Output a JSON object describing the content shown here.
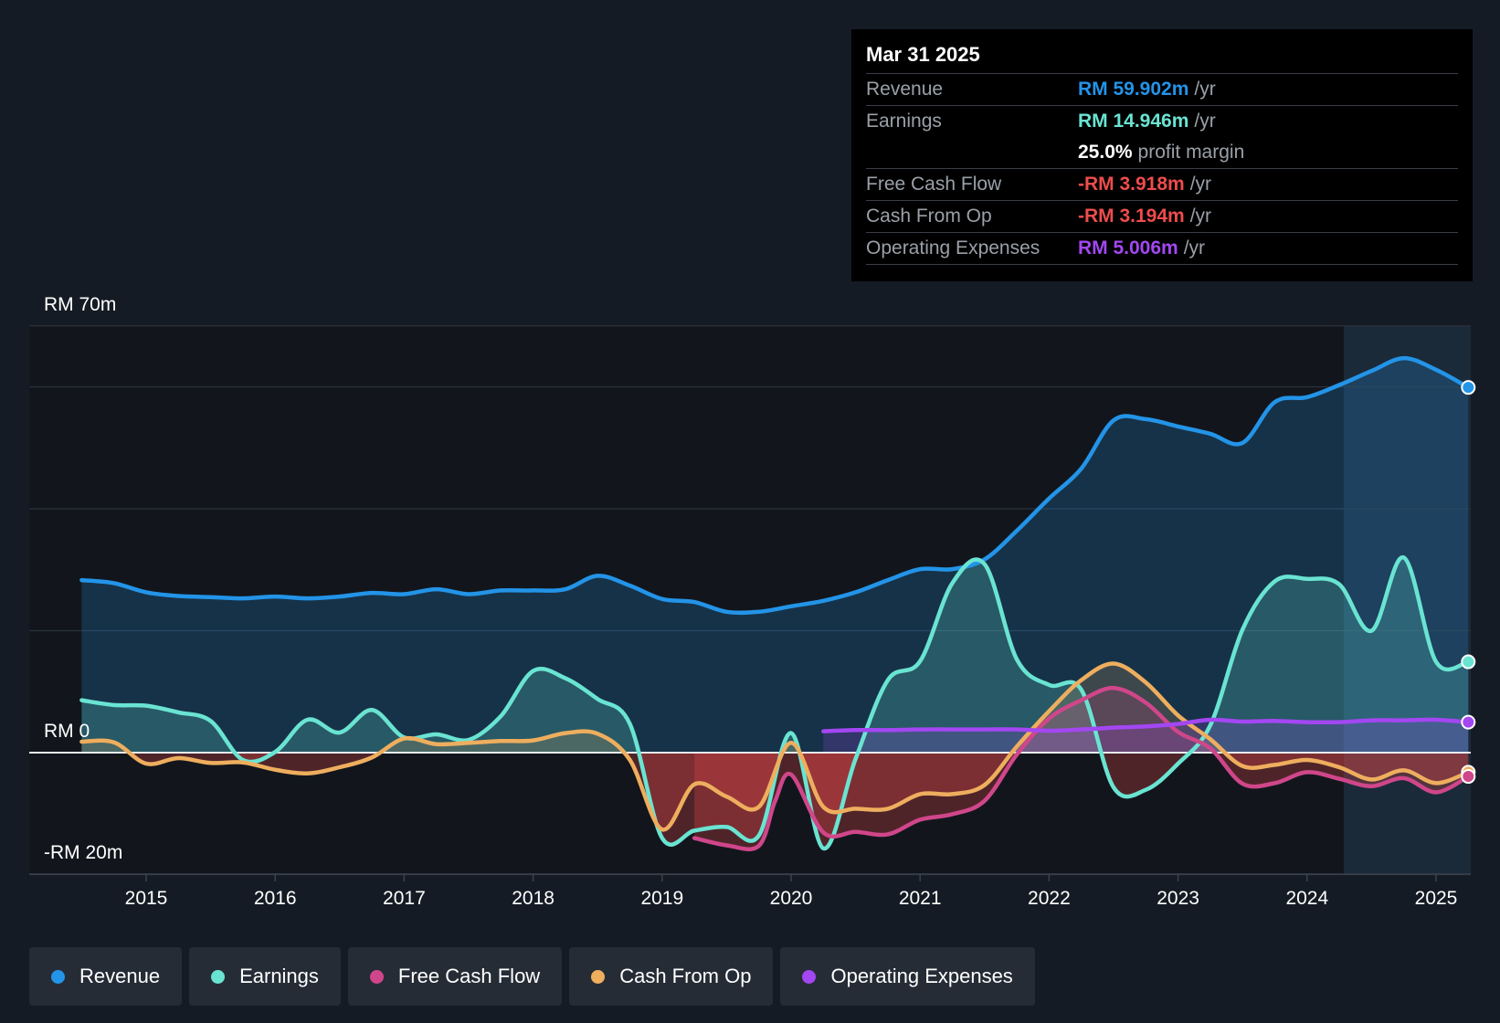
{
  "colors": {
    "background": "#151b24",
    "revenue": "#2394e8",
    "earnings": "#6ae4d2",
    "free_cash_flow": "#d0468a",
    "cash_from_op": "#eeae5e",
    "operating_expenses": "#a347f2",
    "negative": "#ee4c4c"
  },
  "tooltip": {
    "date": "Mar 31 2025",
    "rows": [
      {
        "label": "Revenue",
        "value": "RM 59.902m",
        "unit": "/yr"
      },
      {
        "label": "Earnings",
        "value": "RM 14.946m",
        "unit": "/yr"
      },
      {
        "label": "",
        "value": "25.0%",
        "unit": "profit margin"
      },
      {
        "label": "Free Cash Flow",
        "value": "-RM 3.918m",
        "unit": "/yr"
      },
      {
        "label": "Cash From Op",
        "value": "-RM 3.194m",
        "unit": "/yr"
      },
      {
        "label": "Operating Expenses",
        "value": "RM 5.006m",
        "unit": "/yr"
      }
    ]
  },
  "legend": [
    {
      "label": "Revenue",
      "color": "#2394e8"
    },
    {
      "label": "Earnings",
      "color": "#6ae4d2"
    },
    {
      "label": "Free Cash Flow",
      "color": "#d0468a"
    },
    {
      "label": "Cash From Op",
      "color": "#eeae5e"
    },
    {
      "label": "Operating Expenses",
      "color": "#a347f2"
    }
  ],
  "chart_data": {
    "type": "area",
    "title": "",
    "xlabel": "",
    "ylabel": "",
    "unit": "RM m",
    "y_tick_labels": [
      "RM 70m",
      "RM 0",
      "-RM 20m"
    ],
    "ylim": [
      -20,
      70
    ],
    "xlim": [
      2014.5,
      2025.25
    ],
    "x_ticks": [
      2015,
      2016,
      2017,
      2018,
      2019,
      2020,
      2021,
      2022,
      2023,
      2024,
      2025
    ],
    "x_tick_labels": [
      "2015",
      "2016",
      "2017",
      "2018",
      "2019",
      "2020",
      "2021",
      "2022",
      "2023",
      "2024",
      "2025"
    ],
    "forecast_start": 2024.25,
    "series": [
      {
        "name": "Revenue",
        "key": "revenue",
        "x": [
          2014.5,
          2014.75,
          2015.0,
          2015.25,
          2015.5,
          2015.75,
          2016.0,
          2016.25,
          2016.5,
          2016.75,
          2017.0,
          2017.25,
          2017.5,
          2017.75,
          2018.0,
          2018.25,
          2018.5,
          2018.75,
          2019.0,
          2019.25,
          2019.5,
          2019.75,
          2020.0,
          2020.25,
          2020.5,
          2020.75,
          2021.0,
          2021.25,
          2021.5,
          2021.75,
          2022.0,
          2022.25,
          2022.5,
          2022.75,
          2023.0,
          2023.25,
          2023.5,
          2023.75,
          2024.0,
          2024.25,
          2024.5,
          2024.75,
          2025.0,
          2025.25
        ],
        "values": [
          28.3,
          27.8,
          26.3,
          25.7,
          25.5,
          25.3,
          25.6,
          25.3,
          25.6,
          26.2,
          26.0,
          26.8,
          26.0,
          26.6,
          26.6,
          26.8,
          29.0,
          27.4,
          25.2,
          24.7,
          23.1,
          23.1,
          24.0,
          24.9,
          26.3,
          28.3,
          30.1,
          30.1,
          31.7,
          36.4,
          41.7,
          46.6,
          54.5,
          54.7,
          53.5,
          52.3,
          50.8,
          57.5,
          58.3,
          60.3,
          62.6,
          64.7,
          62.8,
          59.9
        ]
      },
      {
        "name": "Earnings",
        "key": "earnings",
        "x": [
          2014.5,
          2014.75,
          2015.0,
          2015.25,
          2015.5,
          2015.75,
          2016.0,
          2016.25,
          2016.5,
          2016.75,
          2017.0,
          2017.25,
          2017.5,
          2017.75,
          2018.0,
          2018.25,
          2018.5,
          2018.75,
          2019.0,
          2019.25,
          2019.5,
          2019.75,
          2020.0,
          2020.25,
          2020.5,
          2020.75,
          2021.0,
          2021.25,
          2021.5,
          2021.75,
          2022.0,
          2022.25,
          2022.5,
          2022.75,
          2023.0,
          2023.25,
          2023.5,
          2023.75,
          2024.0,
          2024.25,
          2024.5,
          2024.75,
          2025.0,
          2025.25
        ],
        "values": [
          8.6,
          7.8,
          7.7,
          6.6,
          5.2,
          -1.2,
          0.1,
          5.4,
          3.3,
          7.0,
          2.5,
          3.0,
          2.1,
          6.0,
          13.4,
          12.2,
          8.8,
          4.7,
          -14.0,
          -12.8,
          -12.2,
          -13.6,
          3.2,
          -15.7,
          -1.0,
          11.9,
          15.0,
          27.8,
          30.9,
          15.3,
          11.1,
          10.3,
          -5.7,
          -6.1,
          -1.8,
          4.5,
          20.2,
          28.1,
          28.5,
          27.6,
          20.0,
          32.0,
          14.9,
          14.9
        ]
      },
      {
        "name": "Free Cash Flow",
        "key": "free_cash_flow",
        "x": [
          2019.25,
          2019.5,
          2019.75,
          2019.875,
          2020.0,
          2020.25,
          2020.5,
          2020.75,
          2021.0,
          2021.25,
          2021.5,
          2021.75,
          2022.0,
          2022.25,
          2022.5,
          2022.75,
          2023.0,
          2023.25,
          2023.5,
          2023.75,
          2024.0,
          2024.25,
          2024.5,
          2024.75,
          2025.0,
          2025.25
        ],
        "values": [
          -14.0,
          -15.2,
          -15.3,
          -8.0,
          -3.6,
          -13.1,
          -13.0,
          -13.4,
          -11.0,
          -10.1,
          -7.9,
          -0.3,
          5.6,
          8.6,
          10.6,
          8.2,
          3.4,
          0.7,
          -5.1,
          -5.0,
          -3.2,
          -4.3,
          -5.5,
          -4.2,
          -6.5,
          -3.9
        ]
      },
      {
        "name": "Cash From Op",
        "key": "cash_from_op",
        "x": [
          2014.5,
          2014.75,
          2015.0,
          2015.25,
          2015.5,
          2015.75,
          2016.0,
          2016.25,
          2016.5,
          2016.75,
          2017.0,
          2017.25,
          2017.5,
          2017.75,
          2018.0,
          2018.25,
          2018.5,
          2018.75,
          2019.0,
          2019.25,
          2019.5,
          2019.75,
          2020.0,
          2020.25,
          2020.5,
          2020.75,
          2021.0,
          2021.25,
          2021.5,
          2021.75,
          2022.0,
          2022.25,
          2022.5,
          2022.75,
          2023.0,
          2023.25,
          2023.5,
          2023.75,
          2024.0,
          2024.25,
          2024.5,
          2024.75,
          2025.0,
          2025.25
        ],
        "values": [
          1.8,
          1.7,
          -1.8,
          -0.9,
          -1.7,
          -1.6,
          -2.8,
          -3.4,
          -2.4,
          -0.8,
          2.3,
          1.4,
          1.6,
          1.9,
          2.0,
          3.2,
          3.1,
          -1.2,
          -12.6,
          -5.2,
          -7.2,
          -8.9,
          1.6,
          -8.9,
          -9.2,
          -9.2,
          -6.8,
          -6.8,
          -5.3,
          1.0,
          6.8,
          11.9,
          14.6,
          11.5,
          6.1,
          2.2,
          -2.2,
          -2.0,
          -1.2,
          -2.4,
          -4.4,
          -2.9,
          -5.0,
          -3.2
        ]
      },
      {
        "name": "Operating Expenses",
        "key": "operating_expenses",
        "x": [
          2020.25,
          2020.5,
          2020.75,
          2021.0,
          2021.25,
          2021.5,
          2021.75,
          2022.0,
          2022.25,
          2022.5,
          2022.75,
          2023.0,
          2023.25,
          2023.5,
          2023.75,
          2024.0,
          2024.25,
          2024.5,
          2024.75,
          2025.0,
          2025.25
        ],
        "values": [
          3.5,
          3.7,
          3.7,
          3.8,
          3.8,
          3.8,
          3.8,
          3.6,
          3.8,
          4.1,
          4.3,
          4.7,
          5.4,
          5.1,
          5.2,
          5.0,
          5.0,
          5.3,
          5.3,
          5.4,
          5.0
        ]
      }
    ]
  }
}
